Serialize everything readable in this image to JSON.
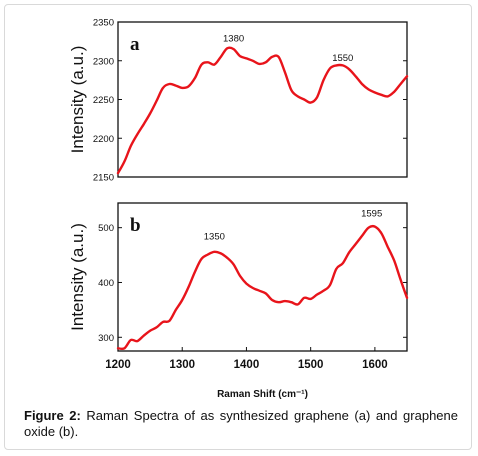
{
  "figure": {
    "caption_label": "Figure 2:",
    "caption_text": " Raman Spectra of as synthesized graphene (a) and graphene oxide (b)."
  },
  "chart_data": [
    {
      "type": "line",
      "panel_label": "a",
      "ylabel": "Intensity (a.u.)",
      "xlim": [
        1200,
        1650
      ],
      "ylim": [
        2150,
        2350
      ],
      "yticks": [
        2150,
        2200,
        2250,
        2300,
        2350
      ],
      "color": "#e8141b",
      "annotations": [
        {
          "text": "1380",
          "x": 1380,
          "y": 2325
        },
        {
          "text": "1550",
          "x": 1550,
          "y": 2300
        }
      ],
      "series": [
        {
          "x": [
            1200,
            1210,
            1220,
            1230,
            1240,
            1250,
            1260,
            1270,
            1280,
            1290,
            1300,
            1310,
            1320,
            1330,
            1340,
            1350,
            1360,
            1370,
            1380,
            1390,
            1400,
            1410,
            1420,
            1430,
            1440,
            1450,
            1460,
            1470,
            1480,
            1490,
            1500,
            1510,
            1520,
            1530,
            1540,
            1550,
            1560,
            1570,
            1580,
            1590,
            1600,
            1610,
            1620,
            1630,
            1640,
            1650
          ],
          "y": [
            2155,
            2170,
            2190,
            2205,
            2218,
            2232,
            2248,
            2265,
            2270,
            2268,
            2265,
            2267,
            2278,
            2295,
            2298,
            2295,
            2305,
            2316,
            2315,
            2306,
            2303,
            2300,
            2296,
            2298,
            2305,
            2305,
            2285,
            2262,
            2254,
            2250,
            2246,
            2253,
            2275,
            2290,
            2294,
            2294,
            2289,
            2280,
            2270,
            2263,
            2259,
            2256,
            2254,
            2260,
            2270,
            2280
          ]
        }
      ]
    },
    {
      "type": "line",
      "panel_label": "b",
      "ylabel": "Intensity (a.u.)",
      "xlabel": "Raman Shift (cm⁻¹)",
      "xlim": [
        1200,
        1650
      ],
      "ylim": [
        275,
        545
      ],
      "yticks": [
        300,
        400,
        500
      ],
      "xticks": [
        1200,
        1300,
        1400,
        1500,
        1600
      ],
      "color": "#e8141b",
      "annotations": [
        {
          "text": "1350",
          "x": 1350,
          "y": 478
        },
        {
          "text": "1595",
          "x": 1595,
          "y": 520
        }
      ],
      "series": [
        {
          "x": [
            1200,
            1210,
            1220,
            1230,
            1240,
            1250,
            1260,
            1270,
            1280,
            1290,
            1300,
            1310,
            1320,
            1330,
            1340,
            1350,
            1360,
            1370,
            1380,
            1390,
            1400,
            1410,
            1420,
            1430,
            1440,
            1450,
            1460,
            1470,
            1480,
            1490,
            1500,
            1510,
            1520,
            1530,
            1540,
            1550,
            1560,
            1570,
            1580,
            1590,
            1600,
            1610,
            1620,
            1630,
            1640,
            1650
          ],
          "y": [
            280,
            280,
            295,
            293,
            303,
            312,
            318,
            328,
            330,
            350,
            368,
            392,
            420,
            443,
            451,
            456,
            453,
            445,
            433,
            412,
            398,
            390,
            385,
            380,
            368,
            364,
            366,
            364,
            360,
            372,
            370,
            378,
            385,
            395,
            425,
            435,
            455,
            470,
            485,
            500,
            502,
            490,
            465,
            440,
            405,
            372
          ]
        }
      ]
    }
  ]
}
